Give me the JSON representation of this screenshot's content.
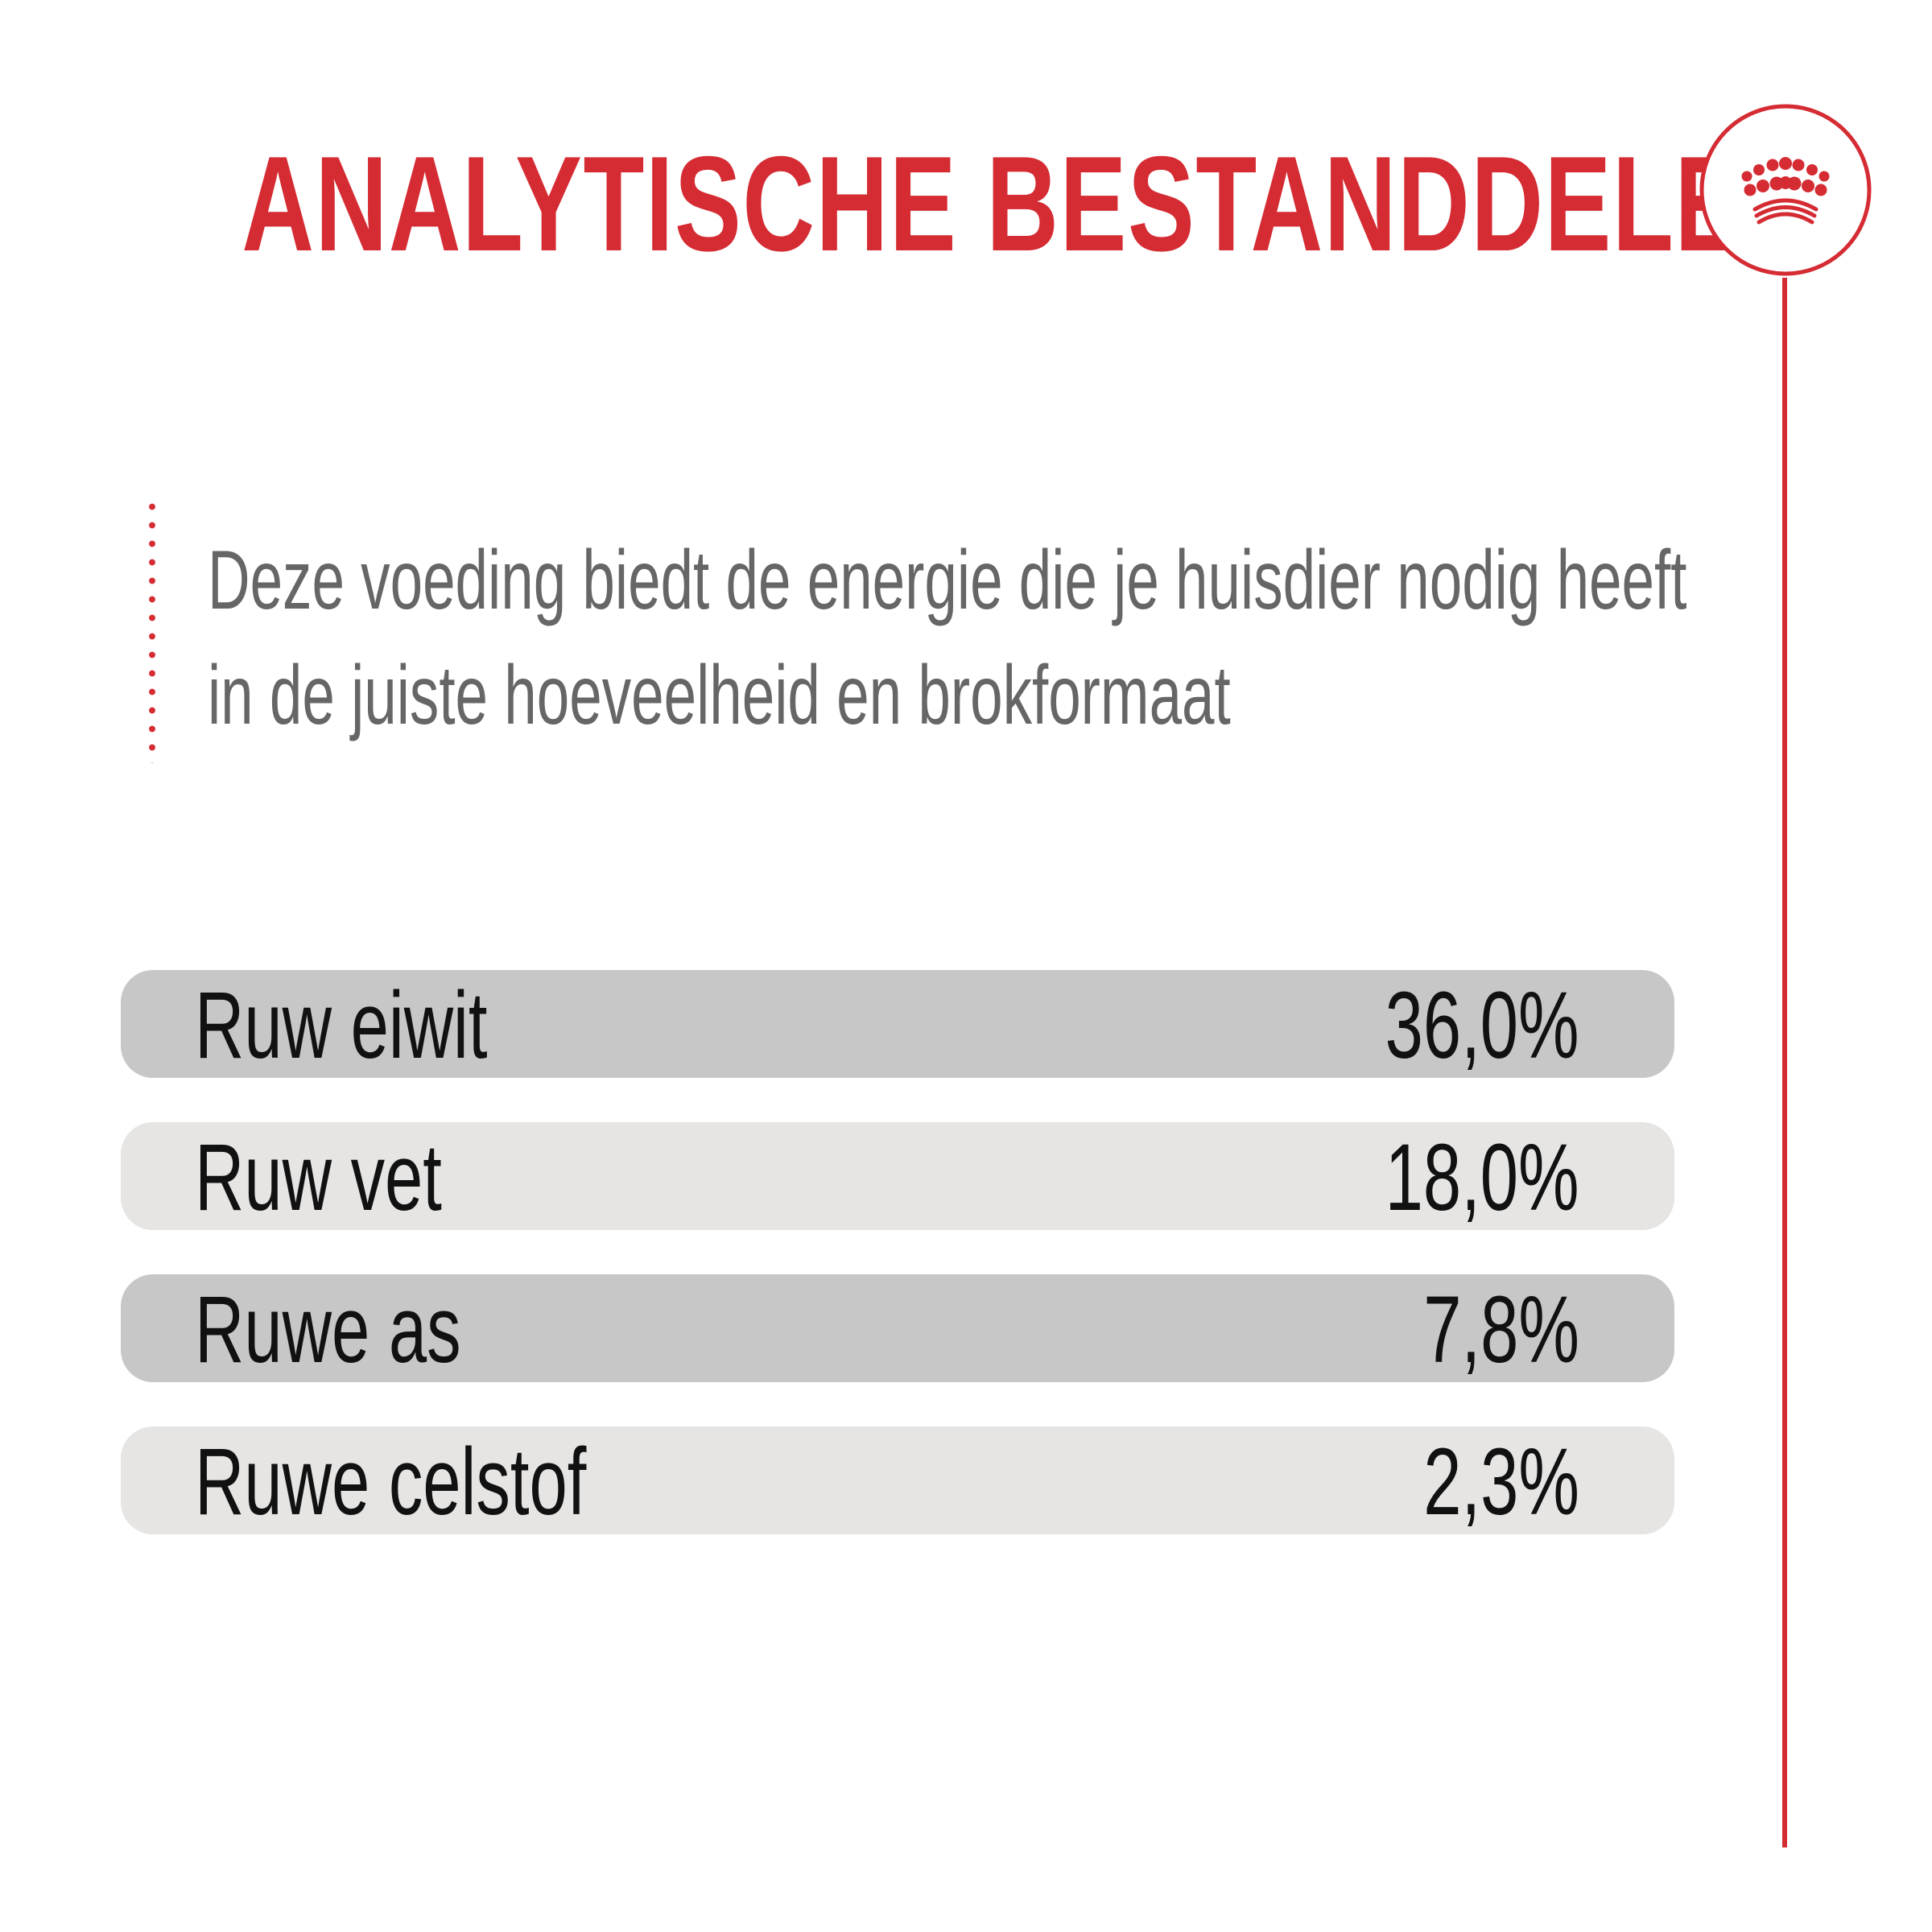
{
  "title": "ANALYTISCHE BESTANDDELEN",
  "intro": {
    "line1": "Deze voeding biedt de energie die je huisdier nodig heeft",
    "line2": "in de juiste hoeveelheid en brokformaat"
  },
  "rows": [
    {
      "label": "Ruw eiwit",
      "value": "36,0%"
    },
    {
      "label": "Ruw vet",
      "value": "18,0%"
    },
    {
      "label": "Ruwe as",
      "value": "7,8%"
    },
    {
      "label": "Ruwe celstof",
      "value": "2,3%"
    }
  ],
  "colors": {
    "accent": "#d52b33",
    "row_dark": "#c8c7c8",
    "row_light": "#e6e5e4",
    "intro_text": "#666666",
    "row_text": "#111111"
  },
  "icons": {
    "logo": "crown-icon"
  }
}
